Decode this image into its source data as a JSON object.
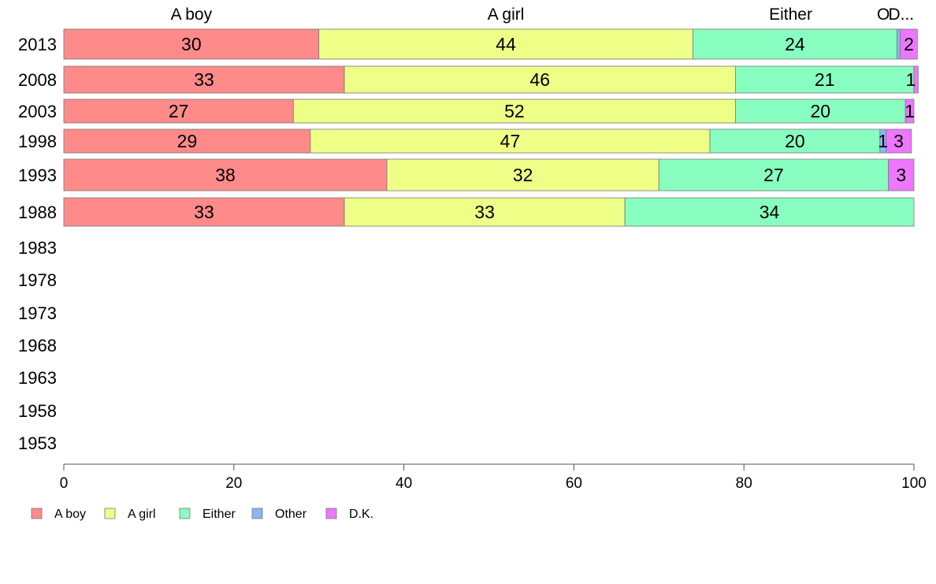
{
  "chart_data": {
    "type": "bar",
    "orientation": "horizontal",
    "stacked": true,
    "categories": [
      "2013",
      "2008",
      "2003",
      "1998",
      "1993",
      "1988",
      "1983",
      "1978",
      "1973",
      "1968",
      "1963",
      "1958",
      "1953"
    ],
    "top_labels": [
      {
        "text": "A boy",
        "x": 15
      },
      {
        "text": "A girl",
        "x": 52
      },
      {
        "text": "Either",
        "x": 85.5
      },
      {
        "text": "O",
        "x": 96.4
      },
      {
        "text": "D...",
        "x": 98.5
      }
    ],
    "series": [
      {
        "name": "A boy",
        "color": "#ff8a8a",
        "values": [
          30,
          33,
          27,
          29,
          38,
          33,
          null,
          null,
          null,
          null,
          null,
          null,
          null
        ],
        "labels": [
          "30",
          "33",
          "27",
          "29",
          "38",
          "33",
          null,
          null,
          null,
          null,
          null,
          null,
          null
        ]
      },
      {
        "name": "A girl",
        "color": "#eeff88",
        "values": [
          44,
          46,
          52,
          47,
          32,
          33,
          null,
          null,
          null,
          null,
          null,
          null,
          null
        ],
        "labels": [
          "44",
          "46",
          "52",
          "47",
          "32",
          "33",
          null,
          null,
          null,
          null,
          null,
          null,
          null
        ]
      },
      {
        "name": "Either",
        "color": "#88ffc0",
        "values": [
          24,
          21,
          20,
          20,
          27,
          34,
          null,
          null,
          null,
          null,
          null,
          null,
          null
        ],
        "labels": [
          "24",
          "21",
          "20",
          "20",
          "27",
          "34",
          null,
          null,
          null,
          null,
          null,
          null,
          null
        ]
      },
      {
        "name": "Other",
        "color": "#88b8f0",
        "values": [
          0.4,
          0,
          0,
          0.7,
          0,
          0,
          null,
          null,
          null,
          null,
          null,
          null,
          null
        ],
        "labels": [
          null,
          null,
          null,
          "1",
          null,
          null,
          null,
          null,
          null,
          null,
          null,
          null,
          null
        ]
      },
      {
        "name": "D.K.",
        "color": "#ee77ff",
        "values": [
          2,
          0.5,
          1,
          3,
          3,
          0,
          null,
          null,
          null,
          null,
          null,
          null,
          null
        ],
        "labels": [
          "2",
          "1",
          "1",
          "3",
          "3",
          null,
          null,
          null,
          null,
          null,
          null,
          null,
          null
        ]
      }
    ],
    "xlim": [
      0,
      100
    ],
    "xticks": [
      "0",
      "20",
      "40",
      "60",
      "80",
      "100"
    ],
    "legend": {
      "placement": "bottom-left",
      "items": [
        "A boy",
        "A girl",
        "Either",
        "Other",
        "D.K."
      ]
    },
    "grid": false
  }
}
